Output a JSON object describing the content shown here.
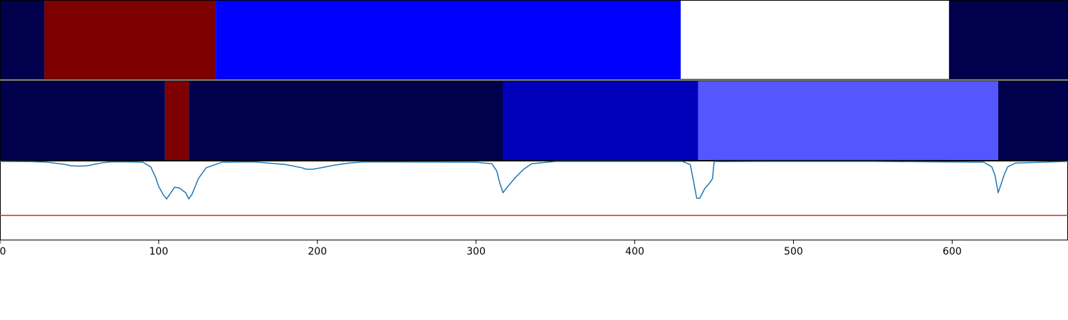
{
  "chart_data": [
    {
      "type": "heatmap",
      "panel": "segmentation-band-1",
      "xlim": [
        0,
        673
      ],
      "segments": [
        {
          "start": 0,
          "end": 28,
          "color": "#00004c"
        },
        {
          "start": 28,
          "end": 136,
          "color": "#7f0000"
        },
        {
          "start": 136,
          "end": 429,
          "color": "#0000ff"
        },
        {
          "start": 429,
          "end": 598,
          "color": "#ffffff"
        },
        {
          "start": 598,
          "end": 673,
          "color": "#00004c"
        }
      ]
    },
    {
      "type": "heatmap",
      "panel": "segmentation-band-2",
      "xlim": [
        0,
        673
      ],
      "segments": [
        {
          "start": 0,
          "end": 104,
          "color": "#00004c"
        },
        {
          "start": 104,
          "end": 119,
          "color": "#7f0000"
        },
        {
          "start": 119,
          "end": 317,
          "color": "#00004c"
        },
        {
          "start": 317,
          "end": 440,
          "color": "#0000bb"
        },
        {
          "start": 440,
          "end": 629,
          "color": "#5656ff"
        },
        {
          "start": 629,
          "end": 673,
          "color": "#00004c"
        }
      ]
    },
    {
      "type": "line",
      "panel": "score-plot",
      "xlim": [
        0,
        673
      ],
      "ylim": [
        0,
        1
      ],
      "xticks": [
        0,
        100,
        200,
        300,
        400,
        500,
        600
      ],
      "threshold": {
        "y": 0.31,
        "color": "#d62728"
      },
      "series": [
        {
          "color": "#1f77b4",
          "x": [
            0,
            20,
            30,
            40,
            45,
            50,
            55,
            60,
            65,
            70,
            80,
            90,
            95,
            98,
            100,
            103,
            105,
            107,
            110,
            113,
            117,
            119,
            121,
            125,
            130,
            140,
            160,
            180,
            190,
            193,
            197,
            200,
            210,
            220,
            230,
            300,
            310,
            313,
            315,
            317,
            320,
            325,
            330,
            335,
            350,
            360,
            430,
            435,
            437,
            439,
            441,
            444,
            447,
            449,
            450,
            455,
            480,
            550,
            620,
            625,
            627,
            629,
            631,
            633,
            635,
            640,
            673
          ],
          "y": [
            1.0,
            0.998,
            0.99,
            0.965,
            0.945,
            0.94,
            0.945,
            0.965,
            0.985,
            0.995,
            0.995,
            0.99,
            0.93,
            0.8,
            0.68,
            0.57,
            0.52,
            0.58,
            0.67,
            0.66,
            0.6,
            0.52,
            0.58,
            0.78,
            0.92,
            0.99,
            0.995,
            0.96,
            0.92,
            0.9,
            0.9,
            0.91,
            0.95,
            0.98,
            0.995,
            0.99,
            0.97,
            0.88,
            0.72,
            0.6,
            0.68,
            0.8,
            0.9,
            0.97,
            1.0,
            1.0,
            1.0,
            0.96,
            0.75,
            0.53,
            0.53,
            0.65,
            0.72,
            0.78,
            1.0,
            0.998,
            1.0,
            1.0,
            0.99,
            0.93,
            0.82,
            0.6,
            0.72,
            0.84,
            0.93,
            0.98,
            1.0
          ]
        }
      ]
    }
  ]
}
